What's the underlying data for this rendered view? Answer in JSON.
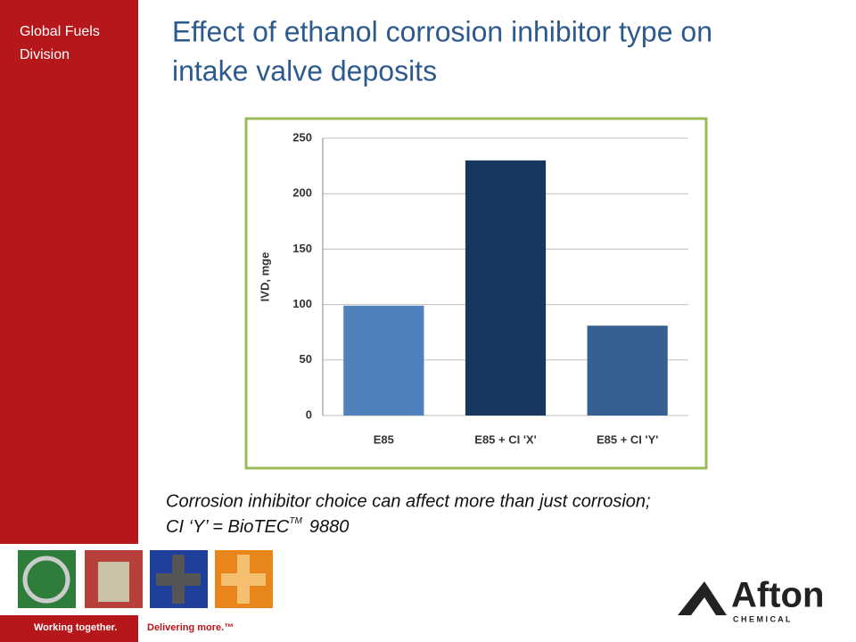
{
  "sidebar": {
    "division": [
      "Global Fuels",
      "Division"
    ]
  },
  "title": [
    "Effect of ethanol corrosion inhibitor type on",
    "intake valve deposits"
  ],
  "caption": {
    "line1": "Corrosion inhibitor choice can affect more than just corrosion;",
    "line2": "CI ‘Y’ = BioTEC",
    "sup": "TM",
    "end": "9880"
  },
  "footer": {
    "left": "Working together.",
    "right": "Delivering more.™"
  },
  "logo": {
    "name": "Afton",
    "sub": "C H E M I C A L"
  },
  "chart_data": {
    "type": "bar",
    "ylabel": "IVD, mge",
    "categories": [
      "E85",
      "E85 + CI 'X'",
      "E85 + CI 'Y'"
    ],
    "values": [
      99,
      230,
      81
    ],
    "colors": [
      "#4f81bd",
      "#17375e",
      "#376092"
    ],
    "ylim": [
      0,
      250
    ],
    "yticks": [
      0,
      50,
      100,
      150,
      200,
      250
    ],
    "grid": true
  }
}
